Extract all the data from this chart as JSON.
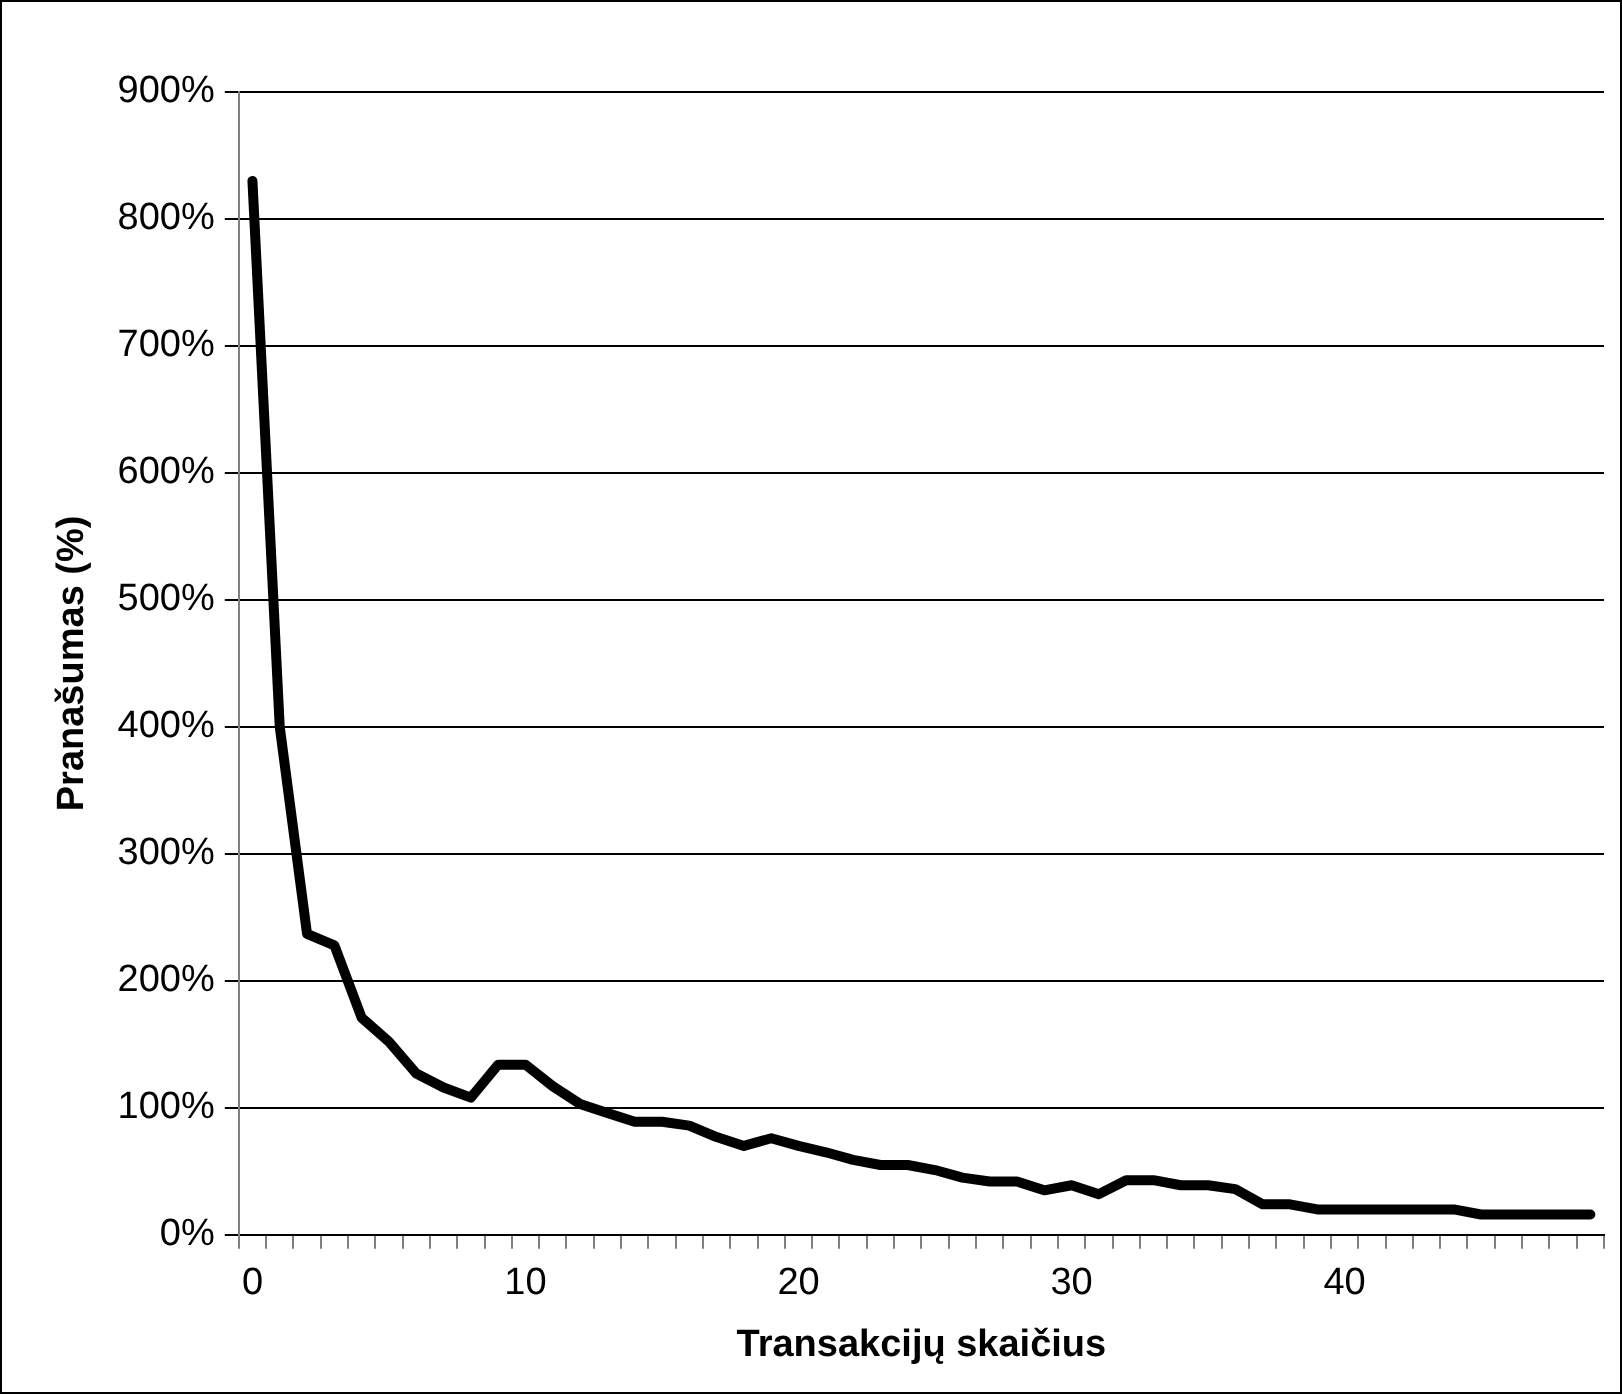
{
  "chart_data": {
    "type": "line",
    "xlabel": "Transakcijų skaičius",
    "ylabel": "Pranašumas (%)",
    "categories": [
      "0",
      null,
      null,
      null,
      null,
      null,
      null,
      null,
      null,
      null,
      "10",
      null,
      null,
      null,
      null,
      null,
      null,
      null,
      null,
      null,
      "20",
      null,
      null,
      null,
      null,
      null,
      null,
      null,
      null,
      null,
      "30",
      null,
      null,
      null,
      null,
      null,
      null,
      null,
      null,
      null,
      "40",
      null,
      null,
      null,
      null,
      null,
      null,
      null,
      null,
      null
    ],
    "series": [
      {
        "color": "#000000",
        "values": [
          830,
          400,
          237,
          228,
          171,
          152,
          127,
          116,
          108,
          134,
          134,
          117,
          103,
          96,
          89,
          89,
          86,
          77,
          70,
          76,
          70,
          65,
          59,
          55,
          55,
          51,
          45,
          42,
          42,
          35,
          39,
          32,
          43,
          43,
          39,
          39,
          36,
          24,
          24,
          20,
          20,
          20,
          20,
          20,
          20,
          16,
          16,
          16,
          16,
          16
        ]
      }
    ],
    "ylim": [
      0,
      900
    ],
    "yticks": [
      {
        "value": 0,
        "label": "0%"
      },
      {
        "value": 100,
        "label": "100%"
      },
      {
        "value": 200,
        "label": "200%"
      },
      {
        "value": 300,
        "label": "300%"
      },
      {
        "value": 400,
        "label": "400%"
      },
      {
        "value": 500,
        "label": "500%"
      },
      {
        "value": 600,
        "label": "600%"
      },
      {
        "value": 700,
        "label": "700%"
      },
      {
        "value": 800,
        "label": "800%"
      },
      {
        "value": 900,
        "label": "900%"
      }
    ],
    "grid": "y",
    "legend": false,
    "marker": "none",
    "line_style": "solid"
  }
}
